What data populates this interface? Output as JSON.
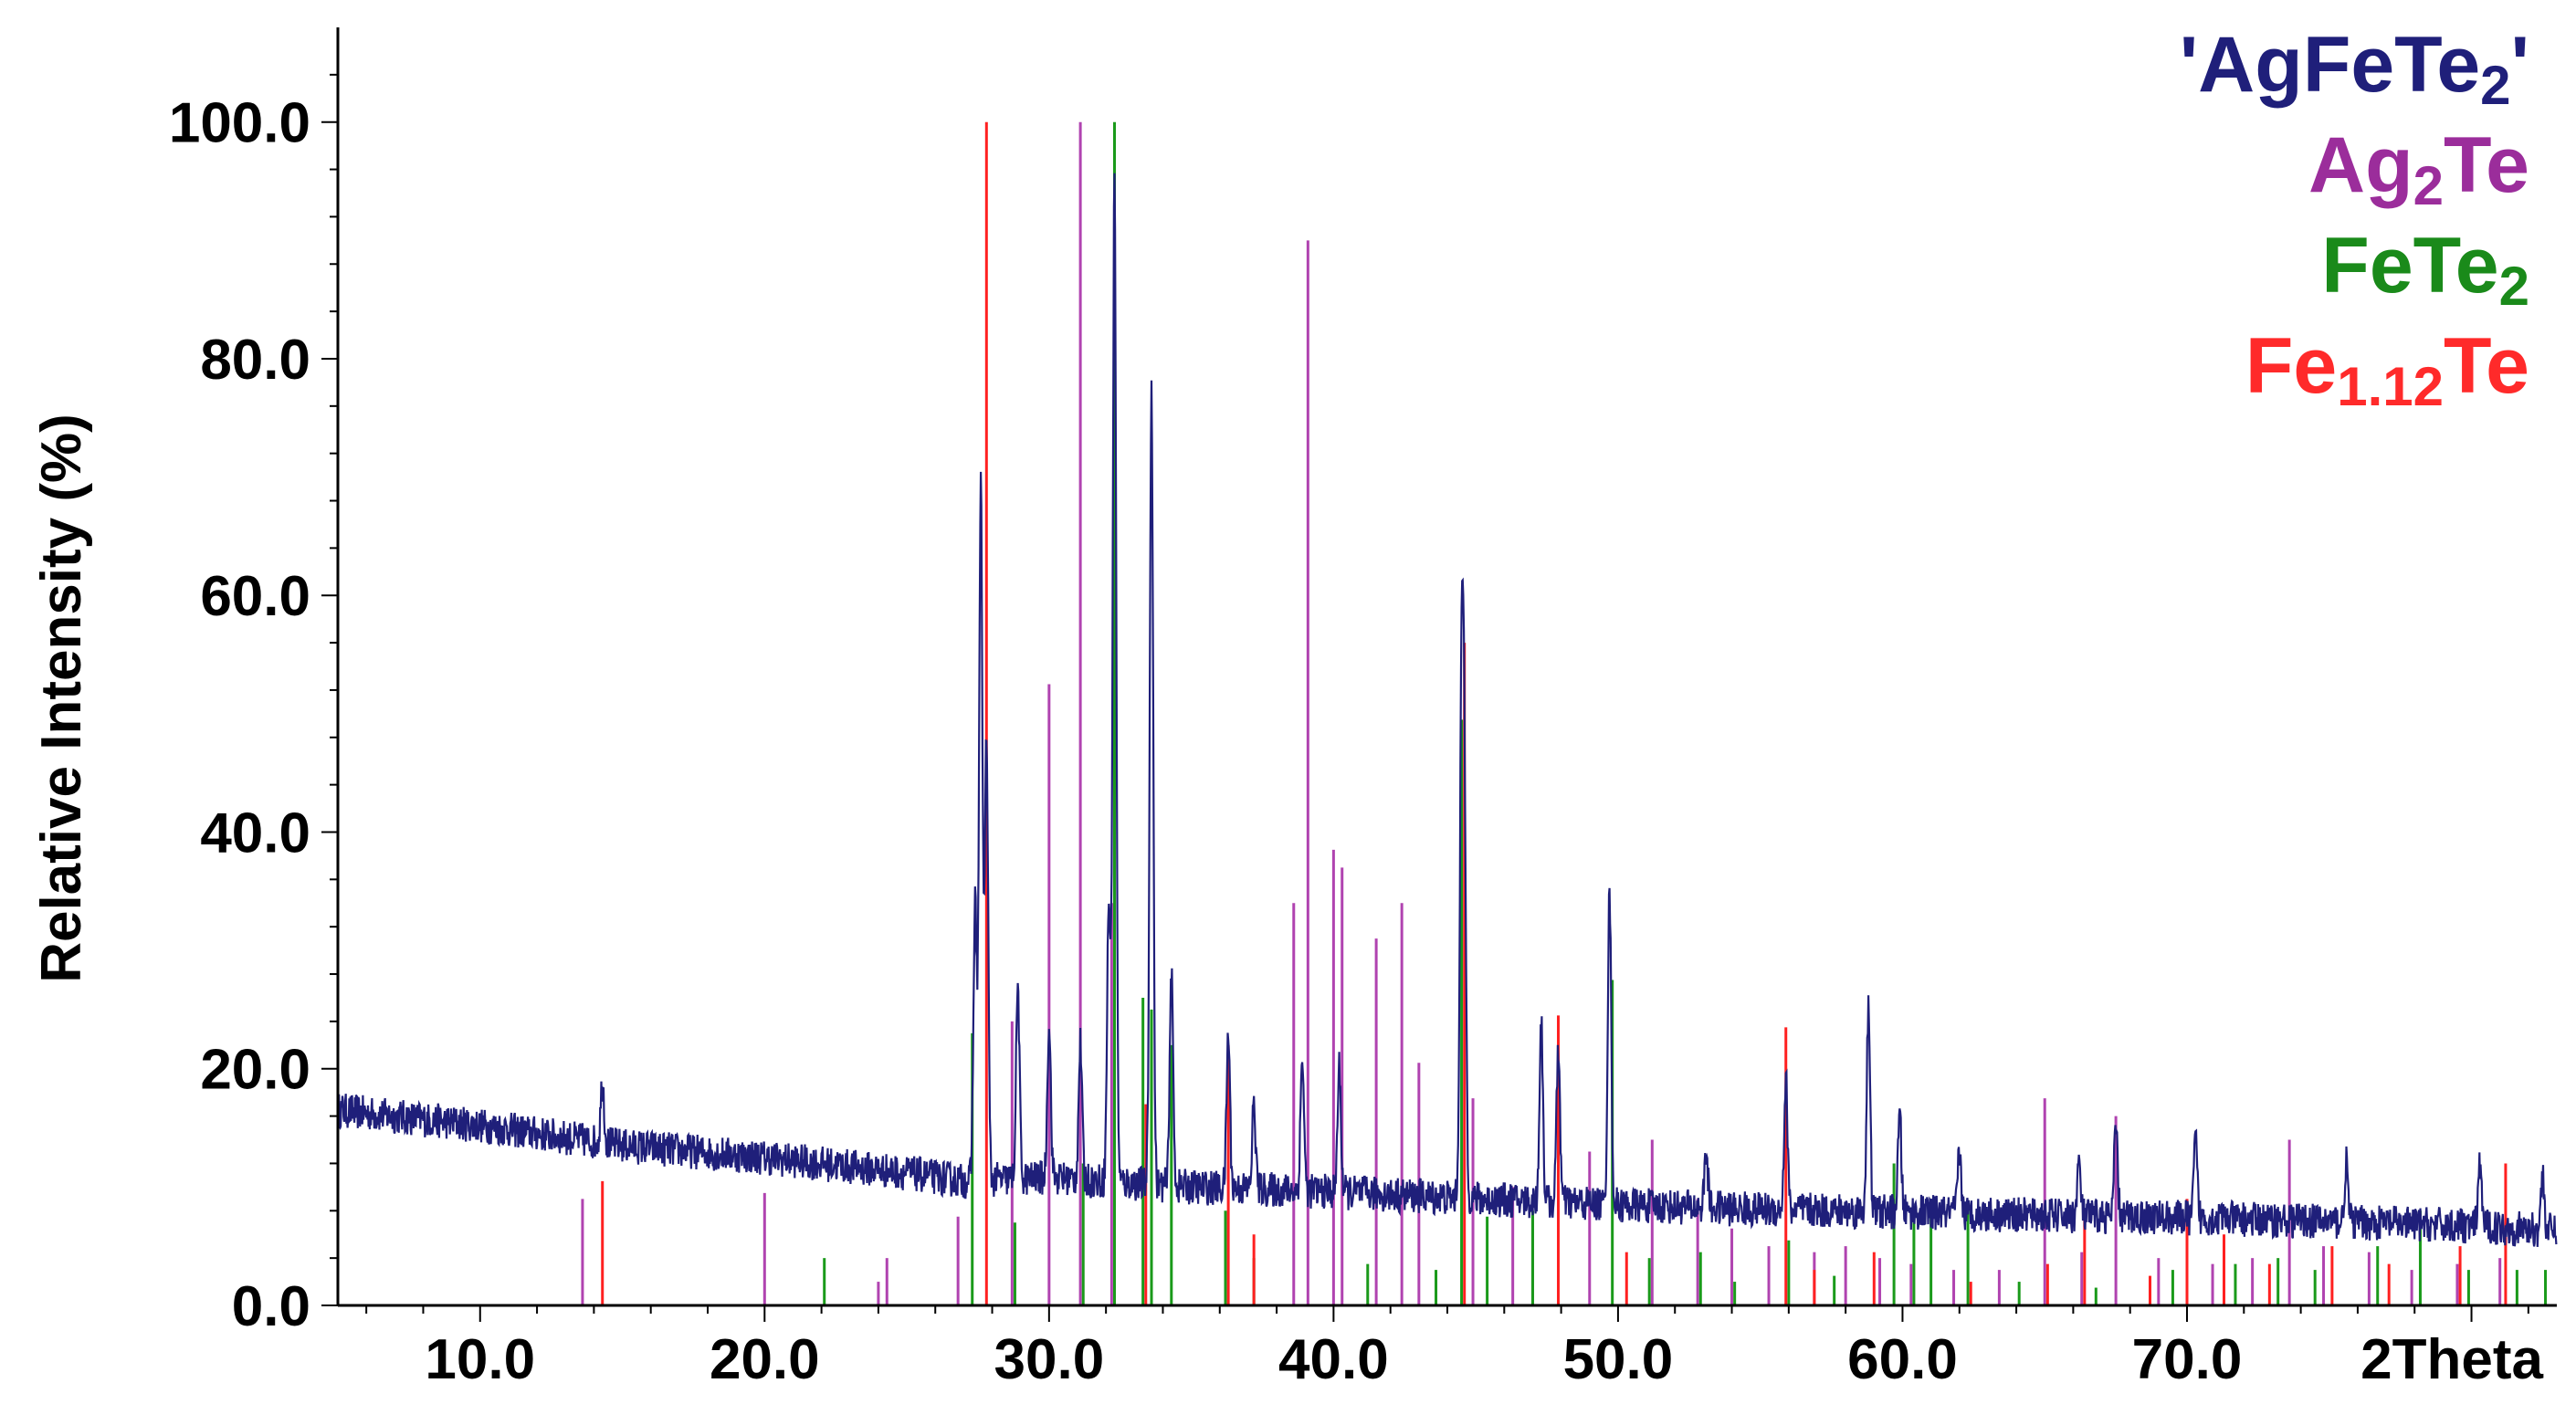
{
  "chart_data": {
    "type": "line",
    "xlabel": "2Theta",
    "ylabel": "Relative Intensity (%)",
    "xlim": [
      5.0,
      83.0
    ],
    "ylim": [
      0.0,
      108.0
    ],
    "x_ticks": [
      "10.0",
      "20.0",
      "30.0",
      "40.0",
      "50.0",
      "60.0",
      "70.0"
    ],
    "y_ticks": [
      "0.0",
      "20.0",
      "40.0",
      "60.0",
      "80.0",
      "100.0"
    ],
    "grid": false,
    "legend_position": "top-right",
    "legend": [
      {
        "text": "'AgFeTe",
        "sub": "2",
        "suffix": "'",
        "color": "#1f1f7a"
      },
      {
        "text": "Ag",
        "sub": "2",
        "suffix": "Te",
        "color": "#9b2d9b"
      },
      {
        "text": "FeTe",
        "sub": "2",
        "suffix": "",
        "color": "#1a8a1a"
      },
      {
        "text": "Fe",
        "sub": "1.12",
        "suffix": "Te",
        "color": "#ff2a2a"
      }
    ],
    "measured": {
      "name": "'AgFeTe2'",
      "color": "#1f1f7a",
      "background": [
        [
          5.0,
          16.5
        ],
        [
          10.0,
          15.2
        ],
        [
          15.0,
          13.5
        ],
        [
          20.0,
          12.5
        ],
        [
          25.0,
          11.2
        ],
        [
          27.0,
          10.5
        ],
        [
          30.0,
          10.8
        ],
        [
          35.0,
          10.0
        ],
        [
          40.0,
          9.6
        ],
        [
          45.0,
          9.0
        ],
        [
          50.0,
          8.5
        ],
        [
          55.0,
          8.1
        ],
        [
          60.0,
          7.9
        ],
        [
          65.0,
          7.6
        ],
        [
          70.0,
          7.4
        ],
        [
          75.0,
          7.1
        ],
        [
          80.0,
          6.7
        ],
        [
          83.0,
          6.3
        ]
      ],
      "peaks": [
        [
          14.3,
          19.0
        ],
        [
          27.4,
          34.0
        ],
        [
          27.6,
          69.0
        ],
        [
          27.8,
          48.0
        ],
        [
          28.9,
          27.0
        ],
        [
          30.0,
          24.0
        ],
        [
          31.1,
          22.0
        ],
        [
          32.1,
          34.0
        ],
        [
          32.3,
          96.0
        ],
        [
          33.6,
          78.0
        ],
        [
          34.3,
          28.0
        ],
        [
          36.3,
          23.0
        ],
        [
          37.2,
          17.0
        ],
        [
          38.9,
          21.0
        ],
        [
          40.2,
          20.0
        ],
        [
          44.5,
          51.0
        ],
        [
          44.6,
          40.0
        ],
        [
          47.3,
          24.0
        ],
        [
          47.9,
          22.0
        ],
        [
          49.7,
          35.0
        ],
        [
          53.1,
          13.0
        ],
        [
          55.9,
          19.0
        ],
        [
          58.8,
          25.0
        ],
        [
          59.9,
          16.0
        ],
        [
          62.0,
          13.0
        ],
        [
          66.2,
          12.0
        ],
        [
          67.5,
          15.0
        ],
        [
          70.3,
          14.0
        ],
        [
          75.6,
          12.0
        ],
        [
          80.3,
          12.0
        ],
        [
          82.5,
          11.0
        ]
      ]
    },
    "reference_series": [
      {
        "name": "Ag2Te",
        "color": "#b043b0",
        "sticks": [
          [
            13.6,
            9.0
          ],
          [
            20.0,
            9.5
          ],
          [
            24.0,
            2.0
          ],
          [
            24.3,
            4.0
          ],
          [
            26.8,
            7.5
          ],
          [
            28.7,
            24.0
          ],
          [
            30.0,
            52.5
          ],
          [
            31.1,
            100.0
          ],
          [
            32.2,
            34.0
          ],
          [
            38.6,
            34.0
          ],
          [
            39.1,
            90.0
          ],
          [
            40.0,
            38.5
          ],
          [
            40.3,
            37.0
          ],
          [
            41.5,
            31.0
          ],
          [
            42.4,
            34.0
          ],
          [
            43.0,
            20.5
          ],
          [
            44.9,
            17.5
          ],
          [
            46.3,
            10.0
          ],
          [
            47.0,
            7.5
          ],
          [
            49.0,
            13.0
          ],
          [
            51.2,
            14.0
          ],
          [
            52.8,
            9.0
          ],
          [
            54.0,
            6.5
          ],
          [
            55.3,
            5.0
          ],
          [
            56.9,
            4.5
          ],
          [
            58.0,
            5.0
          ],
          [
            59.2,
            4.0
          ],
          [
            60.3,
            3.5
          ],
          [
            61.8,
            3.0
          ],
          [
            63.4,
            3.0
          ],
          [
            65.0,
            17.5
          ],
          [
            66.3,
            4.5
          ],
          [
            67.5,
            16.0
          ],
          [
            69.0,
            4.0
          ],
          [
            70.9,
            3.5
          ],
          [
            72.3,
            4.0
          ],
          [
            73.6,
            14.0
          ],
          [
            74.8,
            5.0
          ],
          [
            76.4,
            4.5
          ],
          [
            77.9,
            3.0
          ],
          [
            79.5,
            3.5
          ],
          [
            81.0,
            4.0
          ]
        ]
      },
      {
        "name": "FeTe2",
        "color": "#1a9a1a",
        "sticks": [
          [
            22.1,
            4.0
          ],
          [
            27.3,
            23.0
          ],
          [
            28.8,
            7.0
          ],
          [
            31.2,
            12.0
          ],
          [
            32.3,
            100.0
          ],
          [
            33.3,
            26.0
          ],
          [
            33.6,
            25.0
          ],
          [
            34.3,
            22.0
          ],
          [
            36.2,
            8.0
          ],
          [
            37.2,
            4.0
          ],
          [
            41.2,
            3.5
          ],
          [
            43.6,
            3.0
          ],
          [
            44.5,
            49.5
          ],
          [
            45.4,
            7.5
          ],
          [
            47.0,
            8.0
          ],
          [
            49.8,
            27.5
          ],
          [
            51.1,
            4.0
          ],
          [
            52.9,
            4.5
          ],
          [
            54.1,
            2.0
          ],
          [
            56.0,
            5.5
          ],
          [
            57.6,
            2.5
          ],
          [
            59.7,
            12.0
          ],
          [
            60.4,
            7.0
          ],
          [
            61.0,
            9.0
          ],
          [
            62.3,
            8.0
          ],
          [
            64.1,
            2.0
          ],
          [
            66.8,
            1.5
          ],
          [
            69.5,
            3.0
          ],
          [
            71.7,
            3.5
          ],
          [
            73.2,
            4.0
          ],
          [
            74.5,
            3.0
          ],
          [
            76.7,
            5.0
          ],
          [
            78.2,
            8.0
          ],
          [
            79.9,
            3.0
          ],
          [
            81.6,
            3.0
          ],
          [
            82.6,
            3.0
          ]
        ]
      },
      {
        "name": "Fe1.12Te",
        "color": "#ff2020",
        "sticks": [
          [
            14.3,
            10.5
          ],
          [
            27.8,
            100.0
          ],
          [
            33.4,
            17.0
          ],
          [
            36.3,
            22.0
          ],
          [
            37.2,
            6.0
          ],
          [
            44.6,
            56.0
          ],
          [
            47.9,
            24.5
          ],
          [
            50.3,
            4.5
          ],
          [
            55.9,
            23.5
          ],
          [
            56.9,
            3.0
          ],
          [
            59.0,
            4.5
          ],
          [
            62.4,
            2.0
          ],
          [
            65.1,
            3.5
          ],
          [
            66.4,
            8.0
          ],
          [
            68.7,
            2.5
          ],
          [
            70.0,
            9.0
          ],
          [
            71.3,
            6.0
          ],
          [
            72.9,
            3.5
          ],
          [
            75.1,
            5.0
          ],
          [
            77.1,
            3.5
          ],
          [
            79.6,
            5.0
          ],
          [
            81.2,
            12.0
          ]
        ]
      }
    ]
  }
}
